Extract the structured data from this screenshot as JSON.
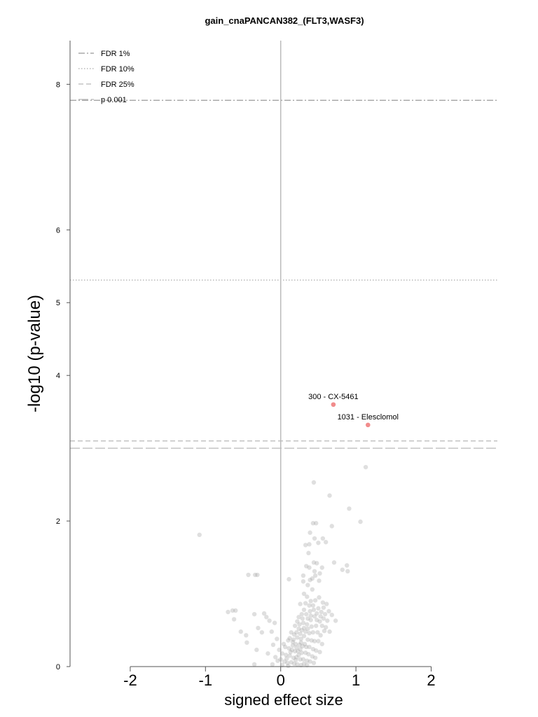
{
  "chart_data": {
    "type": "scatter",
    "title": "gain_cnaPANCAN382_(FLT3,WASF3)",
    "xlabel": "signed effect size",
    "ylabel": "-log10 (p-value)",
    "xlim": [
      -2.8,
      2.88
    ],
    "ylim": [
      0,
      8.6
    ],
    "x_ticks": [
      "-2",
      "-1",
      "0",
      "1",
      "2"
    ],
    "y_ticks": [
      "0",
      "2",
      "4",
      "5",
      "6",
      "8"
    ],
    "grid": false,
    "legend_position": "top-left",
    "thresholds": [
      {
        "name": "FDR 1%",
        "y": 7.78,
        "style": "dashdot"
      },
      {
        "name": "FDR 10%",
        "y": 5.31,
        "style": "dotted"
      },
      {
        "name": "FDR 25%",
        "y": 3.1,
        "style": "dashed"
      },
      {
        "name": "p 0.001",
        "y": 3.0,
        "style": "longdash"
      }
    ],
    "highlighted": [
      {
        "label": "300 - CX-5461",
        "x": 0.7,
        "y": 3.6
      },
      {
        "label": "1031 - Elesclomol",
        "x": 1.16,
        "y": 3.32
      }
    ],
    "points": [
      [
        -1.08,
        1.81
      ],
      [
        -0.43,
        1.26
      ],
      [
        -0.34,
        1.26
      ],
      [
        -0.31,
        1.26
      ],
      [
        -0.7,
        0.75
      ],
      [
        -0.6,
        0.77
      ],
      [
        -0.64,
        0.77
      ],
      [
        -0.35,
        0.72
      ],
      [
        -0.62,
        0.65
      ],
      [
        -0.53,
        0.48
      ],
      [
        -0.46,
        0.43
      ],
      [
        -0.45,
        0.33
      ],
      [
        -0.22,
        0.73
      ],
      [
        -0.19,
        0.68
      ],
      [
        -0.15,
        0.63
      ],
      [
        -0.3,
        0.53
      ],
      [
        -0.25,
        0.47
      ],
      [
        -0.12,
        0.48
      ],
      [
        -0.1,
        0.3
      ],
      [
        -0.17,
        0.18
      ],
      [
        -0.32,
        0.23
      ],
      [
        -0.05,
        0.38
      ],
      [
        -0.04,
        0.08
      ],
      [
        -0.35,
        0.03
      ],
      [
        -0.11,
        0.03
      ],
      [
        -0.07,
        0.13
      ],
      [
        -0.02,
        0.23
      ],
      [
        -0.08,
        0.6
      ],
      [
        1.13,
        2.74
      ],
      [
        0.44,
        2.53
      ],
      [
        0.65,
        2.35
      ],
      [
        0.91,
        2.17
      ],
      [
        1.06,
        1.99
      ],
      [
        0.43,
        1.97
      ],
      [
        0.47,
        1.97
      ],
      [
        0.68,
        1.93
      ],
      [
        0.39,
        1.84
      ],
      [
        0.45,
        1.76
      ],
      [
        0.56,
        1.76
      ],
      [
        0.5,
        1.7
      ],
      [
        0.6,
        1.71
      ],
      [
        0.38,
        1.68
      ],
      [
        0.33,
        1.67
      ],
      [
        0.37,
        1.56
      ],
      [
        0.44,
        1.43
      ],
      [
        0.48,
        1.42
      ],
      [
        0.71,
        1.43
      ],
      [
        0.34,
        1.38
      ],
      [
        0.38,
        1.36
      ],
      [
        0.55,
        1.36
      ],
      [
        0.88,
        1.39
      ],
      [
        0.82,
        1.33
      ],
      [
        0.89,
        1.31
      ],
      [
        0.45,
        1.31
      ],
      [
        0.52,
        1.28
      ],
      [
        0.3,
        1.25
      ],
      [
        0.46,
        1.25
      ],
      [
        0.39,
        1.19
      ],
      [
        0.42,
        1.21
      ],
      [
        0.3,
        1.17
      ],
      [
        0.36,
        1.12
      ],
      [
        0.51,
        1.18
      ],
      [
        0.11,
        1.2
      ],
      [
        0.42,
        1.06
      ],
      [
        0.31,
        1.0
      ],
      [
        0.35,
        0.96
      ],
      [
        0.4,
        0.9
      ],
      [
        0.26,
        0.86
      ],
      [
        0.33,
        0.87
      ],
      [
        0.38,
        0.84
      ],
      [
        0.43,
        0.84
      ],
      [
        0.5,
        0.8
      ],
      [
        0.54,
        0.75
      ],
      [
        0.59,
        0.72
      ],
      [
        0.64,
        0.76
      ],
      [
        0.68,
        0.71
      ],
      [
        0.31,
        0.78
      ],
      [
        0.28,
        0.72
      ],
      [
        0.24,
        0.68
      ],
      [
        0.22,
        0.62
      ],
      [
        0.45,
        0.69
      ],
      [
        0.4,
        0.7
      ],
      [
        0.36,
        0.66
      ],
      [
        0.48,
        0.64
      ],
      [
        0.52,
        0.62
      ],
      [
        0.57,
        0.66
      ],
      [
        0.62,
        0.63
      ],
      [
        0.73,
        0.63
      ],
      [
        0.3,
        0.6
      ],
      [
        0.35,
        0.58
      ],
      [
        0.41,
        0.55
      ],
      [
        0.47,
        0.56
      ],
      [
        0.55,
        0.56
      ],
      [
        0.6,
        0.54
      ],
      [
        0.19,
        0.56
      ],
      [
        0.24,
        0.52
      ],
      [
        0.28,
        0.5
      ],
      [
        0.33,
        0.48
      ],
      [
        0.38,
        0.46
      ],
      [
        0.43,
        0.47
      ],
      [
        0.49,
        0.47
      ],
      [
        0.53,
        0.43
      ],
      [
        0.58,
        0.49
      ],
      [
        0.65,
        0.48
      ],
      [
        0.14,
        0.47
      ],
      [
        0.18,
        0.44
      ],
      [
        0.22,
        0.4
      ],
      [
        0.27,
        0.38
      ],
      [
        0.31,
        0.42
      ],
      [
        0.36,
        0.37
      ],
      [
        0.41,
        0.36
      ],
      [
        0.45,
        0.35
      ],
      [
        0.5,
        0.35
      ],
      [
        0.55,
        0.31
      ],
      [
        0.1,
        0.36
      ],
      [
        0.16,
        0.34
      ],
      [
        0.2,
        0.31
      ],
      [
        0.25,
        0.3
      ],
      [
        0.29,
        0.28
      ],
      [
        0.34,
        0.27
      ],
      [
        0.38,
        0.27
      ],
      [
        0.43,
        0.24
      ],
      [
        0.47,
        0.22
      ],
      [
        0.52,
        0.2
      ],
      [
        0.06,
        0.27
      ],
      [
        0.11,
        0.25
      ],
      [
        0.15,
        0.23
      ],
      [
        0.19,
        0.21
      ],
      [
        0.23,
        0.21
      ],
      [
        0.28,
        0.19
      ],
      [
        0.33,
        0.19
      ],
      [
        0.37,
        0.17
      ],
      [
        0.42,
        0.14
      ],
      [
        0.46,
        0.12
      ],
      [
        0.02,
        0.18
      ],
      [
        0.07,
        0.16
      ],
      [
        0.12,
        0.15
      ],
      [
        0.17,
        0.12
      ],
      [
        0.21,
        0.13
      ],
      [
        0.26,
        0.1
      ],
      [
        0.3,
        0.1
      ],
      [
        0.35,
        0.08
      ],
      [
        0.39,
        0.07
      ],
      [
        0.44,
        0.05
      ],
      [
        0.0,
        0.1
      ],
      [
        0.05,
        0.07
      ],
      [
        0.09,
        0.05
      ],
      [
        0.14,
        0.06
      ],
      [
        0.18,
        0.04
      ],
      [
        0.22,
        0.03
      ],
      [
        0.27,
        0.02
      ],
      [
        0.31,
        0.04
      ],
      [
        0.35,
        0.02
      ],
      [
        0.1,
        0.01
      ],
      [
        0.02,
        0.02
      ],
      [
        0.2,
        0.09
      ],
      [
        0.24,
        0.16
      ],
      [
        0.08,
        0.11
      ],
      [
        0.13,
        0.2
      ],
      [
        0.04,
        0.31
      ],
      [
        0.16,
        0.29
      ],
      [
        0.21,
        0.26
      ],
      [
        0.26,
        0.24
      ],
      [
        0.12,
        0.39
      ],
      [
        0.17,
        0.37
      ],
      [
        0.27,
        0.33
      ],
      [
        0.32,
        0.31
      ],
      [
        0.21,
        0.47
      ],
      [
        0.26,
        0.45
      ],
      [
        0.31,
        0.53
      ],
      [
        0.36,
        0.52
      ],
      [
        0.25,
        0.58
      ],
      [
        0.4,
        0.64
      ],
      [
        0.29,
        0.66
      ],
      [
        0.34,
        0.72
      ],
      [
        0.39,
        0.76
      ],
      [
        0.44,
        0.78
      ],
      [
        0.48,
        0.73
      ],
      [
        0.53,
        0.69
      ],
      [
        0.57,
        0.81
      ],
      [
        0.61,
        0.86
      ],
      [
        0.46,
        0.91
      ],
      [
        0.51,
        0.95
      ],
      [
        0.56,
        0.88
      ]
    ]
  }
}
